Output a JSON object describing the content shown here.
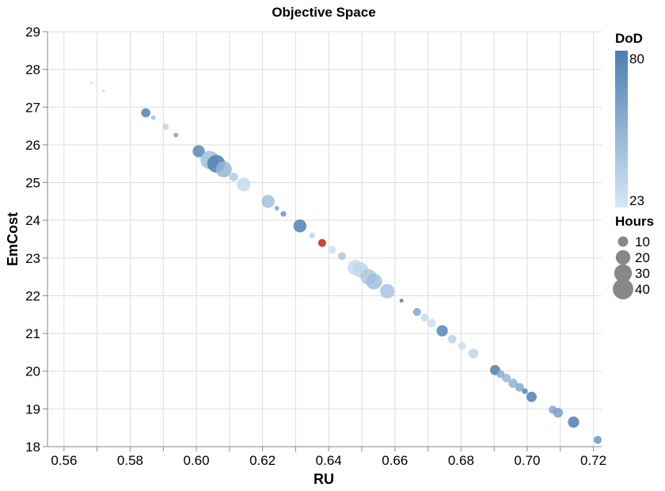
{
  "chart_data": {
    "type": "scatter",
    "title": "Objective Space",
    "xlabel": "RU",
    "ylabel": "EmCost",
    "xlim": [
      0.555,
      0.7225
    ],
    "ylim": [
      18,
      29
    ],
    "x_ticks": [
      "0.56",
      "0.58",
      "0.60",
      "0.62",
      "0.64",
      "0.66",
      "0.68",
      "0.70",
      "0.72"
    ],
    "y_ticks": [
      "18",
      "19",
      "20",
      "21",
      "22",
      "23",
      "24",
      "25",
      "26",
      "27",
      "28",
      "29"
    ],
    "grid": true,
    "color_legend": {
      "title": "DoD",
      "min": 23,
      "max": 80,
      "min_label": "23",
      "max_label": "80",
      "low_color": "#d6e7f5",
      "high_color": "#4c7fb3"
    },
    "size_legend": {
      "title": "Hours",
      "entries": [
        "10",
        "20",
        "30",
        "40"
      ],
      "values": [
        10,
        20,
        30,
        40
      ],
      "color": "#888888"
    },
    "highlight_color": "#d43f3a",
    "points": [
      {
        "x": 0.5683,
        "y": 27.65,
        "hours": 0.5,
        "dod": 30
      },
      {
        "x": 0.572,
        "y": 27.43,
        "hours": 0.5,
        "dod": 35
      },
      {
        "x": 0.5847,
        "y": 26.85,
        "hours": 8,
        "dod": 78
      },
      {
        "x": 0.587,
        "y": 26.72,
        "hours": 2,
        "dod": 45
      },
      {
        "x": 0.5907,
        "y": 26.48,
        "hours": 4,
        "dod": 32
      },
      {
        "x": 0.5938,
        "y": 26.26,
        "hours": 2,
        "dod": 62
      },
      {
        "x": 0.6007,
        "y": 25.83,
        "hours": 14,
        "dod": 75
      },
      {
        "x": 0.604,
        "y": 25.6,
        "hours": 32,
        "dod": 45
      },
      {
        "x": 0.606,
        "y": 25.5,
        "hours": 30,
        "dod": 80
      },
      {
        "x": 0.6083,
        "y": 25.35,
        "hours": 24,
        "dod": 50
      },
      {
        "x": 0.6113,
        "y": 25.15,
        "hours": 7,
        "dod": 38
      },
      {
        "x": 0.6143,
        "y": 24.95,
        "hours": 18,
        "dod": 30
      },
      {
        "x": 0.6217,
        "y": 24.5,
        "hours": 16,
        "dod": 45
      },
      {
        "x": 0.6243,
        "y": 24.32,
        "hours": 2,
        "dod": 62
      },
      {
        "x": 0.6263,
        "y": 24.17,
        "hours": 3,
        "dod": 68
      },
      {
        "x": 0.6313,
        "y": 23.85,
        "hours": 16,
        "dod": 78
      },
      {
        "x": 0.635,
        "y": 23.6,
        "hours": 3,
        "dod": 35
      },
      {
        "x": 0.638,
        "y": 23.4,
        "hours": 6,
        "dod": 0,
        "highlight": true
      },
      {
        "x": 0.641,
        "y": 23.22,
        "hours": 6,
        "dod": 28
      },
      {
        "x": 0.644,
        "y": 23.05,
        "hours": 6,
        "dod": 40
      },
      {
        "x": 0.648,
        "y": 22.75,
        "hours": 22,
        "dod": 30
      },
      {
        "x": 0.6497,
        "y": 22.68,
        "hours": 22,
        "dod": 32
      },
      {
        "x": 0.652,
        "y": 22.5,
        "hours": 24,
        "dod": 40
      },
      {
        "x": 0.6537,
        "y": 22.38,
        "hours": 24,
        "dod": 45
      },
      {
        "x": 0.6577,
        "y": 22.12,
        "hours": 20,
        "dod": 42
      },
      {
        "x": 0.662,
        "y": 21.87,
        "hours": 1.5,
        "dod": 78
      },
      {
        "x": 0.6667,
        "y": 21.57,
        "hours": 6,
        "dod": 58
      },
      {
        "x": 0.669,
        "y": 21.42,
        "hours": 6,
        "dod": 30
      },
      {
        "x": 0.671,
        "y": 21.28,
        "hours": 7,
        "dod": 28
      },
      {
        "x": 0.6743,
        "y": 21.07,
        "hours": 12,
        "dod": 76
      },
      {
        "x": 0.6773,
        "y": 20.85,
        "hours": 7,
        "dod": 35
      },
      {
        "x": 0.6803,
        "y": 20.67,
        "hours": 6,
        "dod": 28
      },
      {
        "x": 0.6837,
        "y": 20.47,
        "hours": 9,
        "dod": 33
      },
      {
        "x": 0.6903,
        "y": 20.03,
        "hours": 10,
        "dod": 80
      },
      {
        "x": 0.692,
        "y": 19.92,
        "hours": 6,
        "dod": 55
      },
      {
        "x": 0.6937,
        "y": 19.82,
        "hours": 7,
        "dod": 50
      },
      {
        "x": 0.6957,
        "y": 19.68,
        "hours": 8,
        "dod": 52
      },
      {
        "x": 0.6977,
        "y": 19.57,
        "hours": 7,
        "dod": 58
      },
      {
        "x": 0.6993,
        "y": 19.47,
        "hours": 3,
        "dod": 78
      },
      {
        "x": 0.7013,
        "y": 19.32,
        "hours": 10,
        "dod": 80
      },
      {
        "x": 0.7077,
        "y": 18.98,
        "hours": 6,
        "dod": 58
      },
      {
        "x": 0.7093,
        "y": 18.9,
        "hours": 9,
        "dod": 62
      },
      {
        "x": 0.714,
        "y": 18.65,
        "hours": 12,
        "dod": 80
      },
      {
        "x": 0.7213,
        "y": 18.18,
        "hours": 6,
        "dod": 68
      }
    ]
  }
}
